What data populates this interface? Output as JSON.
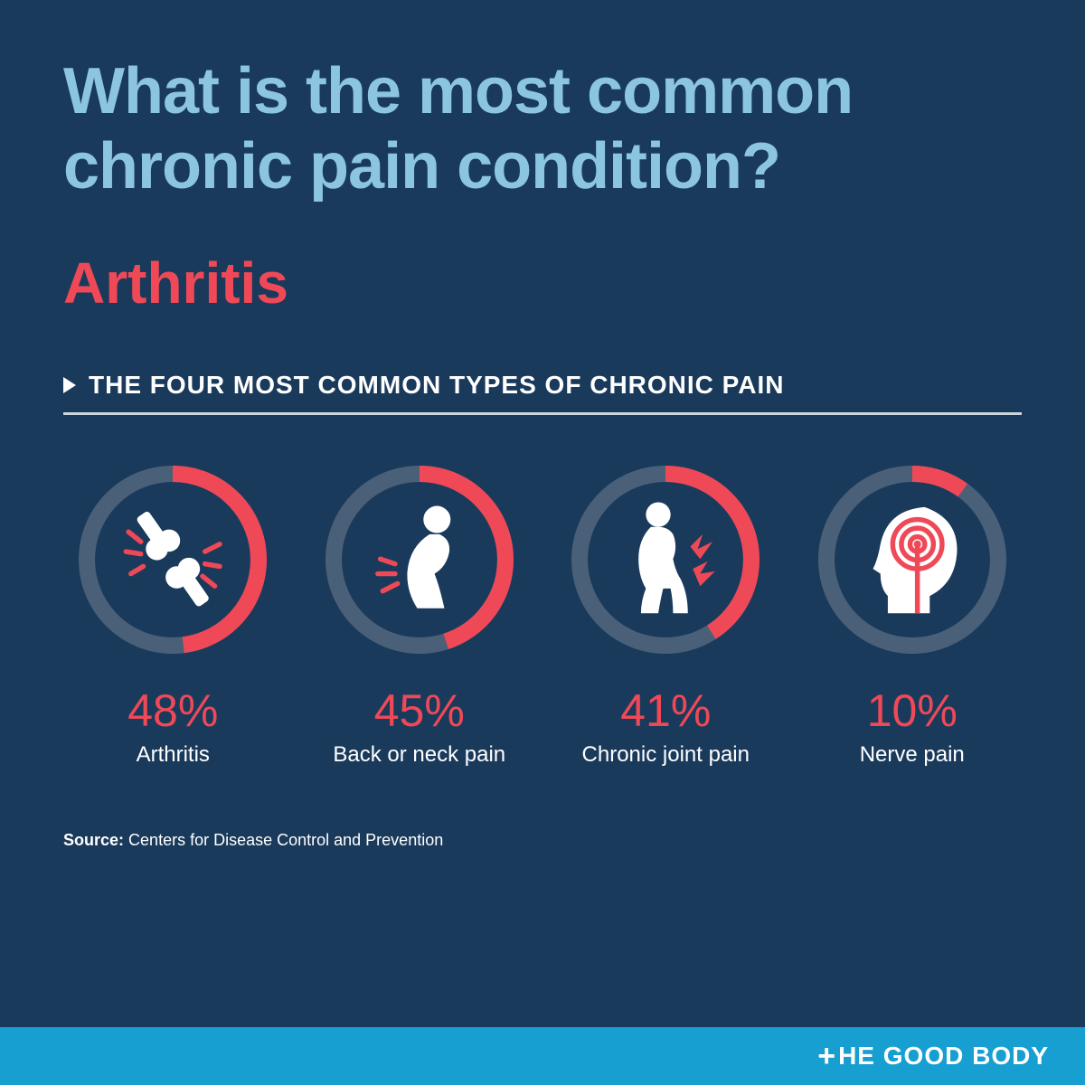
{
  "colors": {
    "background": "#1a3a5c",
    "title": "#8cc5e0",
    "accent": "#ef4957",
    "ring_track": "#4a6078",
    "text_white": "#ffffff",
    "footer_bg": "#169fd0",
    "divider": "#cdd6dd"
  },
  "title": "What is the most common chronic pain condition?",
  "answer": "Arthritis",
  "subheading": "THE FOUR MOST COMMON TYPES OF CHRONIC PAIN",
  "chart": {
    "type": "radial-progress",
    "ring_stroke_width": 18,
    "radius": 95,
    "start_angle_deg": -90,
    "items": [
      {
        "percent": 48,
        "percent_label": "48%",
        "label": "Arthritis",
        "icon": "joint"
      },
      {
        "percent": 45,
        "percent_label": "45%",
        "label": "Back or neck pain",
        "icon": "back"
      },
      {
        "percent": 41,
        "percent_label": "41%",
        "label": "Chronic joint pain",
        "icon": "knee"
      },
      {
        "percent": 10,
        "percent_label": "10%",
        "label": "Nerve pain",
        "icon": "nerve"
      }
    ]
  },
  "source_label": "Source:",
  "source_text": "Centers for Disease Control and Prevention",
  "brand": "HE GOOD BODY"
}
